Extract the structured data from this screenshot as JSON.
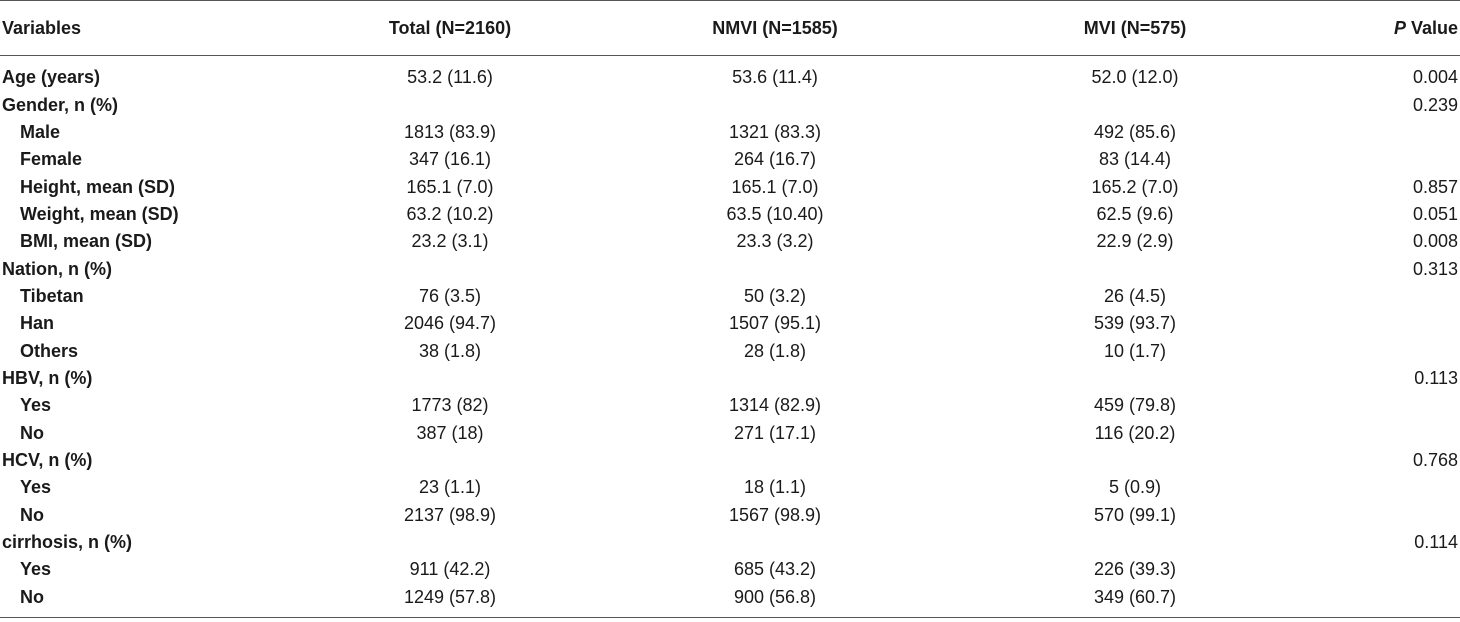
{
  "headers": {
    "variables": "Variables",
    "total": "Total (N=2160)",
    "nmvi": "NMVI (N=1585)",
    "mvi": "MVI (N=575)",
    "p_italic": "P",
    "p_rest": " Value"
  },
  "rows": [
    {
      "label": "Age (years)",
      "total": "53.2 (11.6)",
      "nmvi": "53.6 (11.4)",
      "mvi": "52.0 (12.0)",
      "p": "0.004"
    },
    {
      "label": "Gender, n (%)",
      "total": "",
      "nmvi": "",
      "mvi": "",
      "p": "0.239"
    },
    {
      "label": "Male",
      "total": "1813 (83.9)",
      "nmvi": "1321 (83.3)",
      "mvi": "492 (85.6)",
      "p": ""
    },
    {
      "label": "Female",
      "total": "347 (16.1)",
      "nmvi": "264 (16.7)",
      "mvi": "83 (14.4)",
      "p": ""
    },
    {
      "label": "Height, mean (SD)",
      "total": "165.1 (7.0)",
      "nmvi": "165.1 (7.0)",
      "mvi": "165.2 (7.0)",
      "p": "0.857"
    },
    {
      "label": "Weight, mean (SD)",
      "total": "63.2 (10.2)",
      "nmvi": "63.5 (10.40)",
      "mvi": "62.5 (9.6)",
      "p": "0.051"
    },
    {
      "label": "BMI, mean (SD)",
      "total": "23.2 (3.1)",
      "nmvi": "23.3 (3.2)",
      "mvi": "22.9 (2.9)",
      "p": "0.008"
    },
    {
      "label": "Nation, n (%)",
      "total": "",
      "nmvi": "",
      "mvi": "",
      "p": "0.313"
    },
    {
      "label": "Tibetan",
      "total": "76 (3.5)",
      "nmvi": "50 (3.2)",
      "mvi": "26 (4.5)",
      "p": ""
    },
    {
      "label": "Han",
      "total": "2046 (94.7)",
      "nmvi": "1507 (95.1)",
      "mvi": "539 (93.7)",
      "p": ""
    },
    {
      "label": "Others",
      "total": "38 (1.8)",
      "nmvi": "28 (1.8)",
      "mvi": "10 (1.7)",
      "p": ""
    },
    {
      "label": "HBV, n (%)",
      "total": "",
      "nmvi": "",
      "mvi": "",
      "p": "0.113"
    },
    {
      "label": "Yes",
      "total": "1773 (82)",
      "nmvi": "1314 (82.9)",
      "mvi": "459 (79.8)",
      "p": ""
    },
    {
      "label": "No",
      "total": "387 (18)",
      "nmvi": "271 (17.1)",
      "mvi": "116 (20.2)",
      "p": ""
    },
    {
      "label": "HCV, n (%)",
      "total": "",
      "nmvi": "",
      "mvi": "",
      "p": "0.768"
    },
    {
      "label": "Yes",
      "total": "23 (1.1)",
      "nmvi": "18 (1.1)",
      "mvi": "5 (0.9)",
      "p": ""
    },
    {
      "label": "No",
      "total": "2137 (98.9)",
      "nmvi": "1567 (98.9)",
      "mvi": "570 (99.1)",
      "p": ""
    },
    {
      "label": "cirrhosis, n (%)",
      "total": "",
      "nmvi": "",
      "mvi": "",
      "p": "0.114"
    },
    {
      "label": "Yes",
      "total": "911 (42.2)",
      "nmvi": "685 (43.2)",
      "mvi": "226 (39.3)",
      "p": ""
    },
    {
      "label": "No",
      "total": "1249 (57.8)",
      "nmvi": "900 (56.8)",
      "mvi": "349 (60.7)",
      "p": ""
    }
  ]
}
